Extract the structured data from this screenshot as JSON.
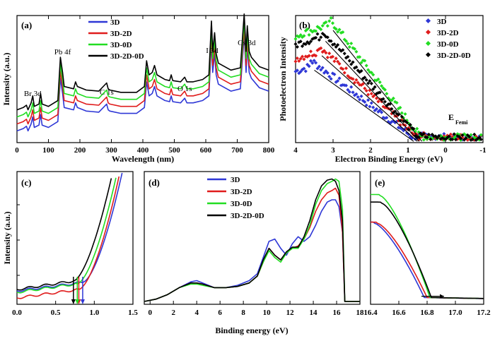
{
  "colors": {
    "3D": "#2e37d6",
    "3D-2D": "#e01c1c",
    "3D-0D": "#22dd22",
    "3D-2D-0D": "#000000"
  },
  "chart_data": [
    {
      "panel": "(a)",
      "type": "line",
      "xlabel": "Wavelength (nm)",
      "ylabel": "Intensity (a.u.)",
      "xlim": [
        0,
        800
      ],
      "xticks": [
        0,
        100,
        200,
        300,
        400,
        500,
        600,
        700,
        800
      ],
      "legend": "top-center",
      "series_names": [
        "3D",
        "3D-2D",
        "3D-0D",
        "3D-2D-0D"
      ],
      "offsets": [
        0.0,
        0.06,
        0.12,
        0.18
      ],
      "x": [
        0,
        20,
        30,
        35,
        45,
        50,
        55,
        70,
        75,
        80,
        100,
        130,
        138,
        145,
        150,
        180,
        186,
        192,
        220,
        260,
        285,
        290,
        295,
        330,
        380,
        405,
        412,
        420,
        430,
        437,
        445,
        470,
        485,
        490,
        495,
        520,
        533,
        540,
        560,
        590,
        610,
        618,
        622,
        628,
        633,
        640,
        680,
        710,
        722,
        728,
        732,
        738,
        745,
        770,
        800
      ],
      "values": [
        0.1,
        0.12,
        0.14,
        0.1,
        0.16,
        0.22,
        0.13,
        0.15,
        0.24,
        0.15,
        0.13,
        0.18,
        0.55,
        0.42,
        0.3,
        0.28,
        0.34,
        0.3,
        0.27,
        0.26,
        0.33,
        0.28,
        0.27,
        0.25,
        0.25,
        0.3,
        0.52,
        0.4,
        0.42,
        0.48,
        0.4,
        0.36,
        0.35,
        0.4,
        0.35,
        0.34,
        0.38,
        0.34,
        0.34,
        0.36,
        0.4,
        0.86,
        0.6,
        0.76,
        0.58,
        0.5,
        0.44,
        0.46,
        0.92,
        0.6,
        0.82,
        0.6,
        0.55,
        0.47,
        0.44
      ],
      "annotations": [
        {
          "text": "Br 3d",
          "x": 50
        },
        {
          "text": "Pb 4f",
          "x": 145
        },
        {
          "text": "C 1s",
          "x": 285
        },
        {
          "text": "O 1s",
          "x": 533
        },
        {
          "text": "I 3d",
          "x": 620
        },
        {
          "text": "Cs 3d",
          "x": 730
        }
      ]
    },
    {
      "panel": "(b)",
      "type": "scatter",
      "xlabel": "Electron Binding Energy (eV)",
      "ylabel": "Photoelectron Intensity",
      "xlim": [
        4,
        -1
      ],
      "xticks": [
        4,
        3,
        2,
        1,
        0,
        -1
      ],
      "legend": "top-right",
      "annotation": "E",
      "annotation_sub": "Femi",
      "series": [
        {
          "name": "3D",
          "peak_x": 3.6,
          "peak_y": 0.6,
          "cut_x": 0.9
        },
        {
          "name": "3D-2D",
          "peak_x": 3.4,
          "peak_y": 0.72,
          "cut_x": 0.8
        },
        {
          "name": "3D-0D",
          "peak_x": 3.1,
          "peak_y": 0.93,
          "cut_x": 0.68
        },
        {
          "name": "3D-2D-0D",
          "peak_x": 3.3,
          "peak_y": 0.84,
          "cut_x": 0.75
        }
      ]
    },
    {
      "panel": "(c)",
      "type": "line",
      "ylabel": "Intensity (a.u.)",
      "xlim": [
        0,
        1.5
      ],
      "xticks": [
        "0.0",
        "0.5",
        "1.0",
        "1.5"
      ],
      "series": [
        {
          "name": "3D",
          "onset": 0.85
        },
        {
          "name": "3D-2D",
          "onset": 0.8
        },
        {
          "name": "3D-0D",
          "onset": 0.78
        },
        {
          "name": "3D-2D-0D",
          "onset": 0.73
        }
      ]
    },
    {
      "panel": "(d)",
      "type": "line",
      "xlabel": "Binding energy (eV)",
      "xlim": [
        -0.5,
        18
      ],
      "xticks": [
        0,
        2,
        4,
        6,
        8,
        10,
        12,
        14,
        16,
        18
      ],
      "legend": "top-center",
      "x": [
        -0.5,
        0.5,
        1.5,
        2.5,
        3.5,
        4.0,
        4.5,
        5.5,
        6.5,
        7.5,
        8.5,
        9.2,
        9.7,
        10.2,
        10.7,
        11.2,
        11.7,
        12.2,
        12.7,
        13.2,
        13.7,
        14.2,
        14.7,
        15.2,
        15.6,
        15.9,
        16.2,
        16.5,
        16.7,
        18.0
      ],
      "series": [
        {
          "name": "3D",
          "values": [
            0.0,
            0.02,
            0.06,
            0.12,
            0.17,
            0.18,
            0.16,
            0.12,
            0.12,
            0.14,
            0.18,
            0.24,
            0.38,
            0.52,
            0.54,
            0.46,
            0.4,
            0.5,
            0.56,
            0.52,
            0.56,
            0.66,
            0.78,
            0.86,
            0.88,
            0.88,
            0.82,
            0.6,
            0.0,
            0.0
          ]
        },
        {
          "name": "3D-2D",
          "values": [
            0.0,
            0.02,
            0.06,
            0.12,
            0.16,
            0.16,
            0.15,
            0.12,
            0.12,
            0.13,
            0.16,
            0.22,
            0.34,
            0.46,
            0.4,
            0.36,
            0.42,
            0.46,
            0.48,
            0.54,
            0.64,
            0.78,
            0.88,
            0.94,
            0.96,
            0.98,
            0.92,
            0.6,
            0.0,
            0.0
          ]
        },
        {
          "name": "3D-0D",
          "values": [
            0.0,
            0.02,
            0.06,
            0.12,
            0.15,
            0.15,
            0.14,
            0.12,
            0.12,
            0.13,
            0.16,
            0.22,
            0.34,
            0.44,
            0.38,
            0.34,
            0.42,
            0.46,
            0.46,
            0.54,
            0.66,
            0.84,
            0.96,
            1.02,
            1.04,
            1.06,
            1.04,
            0.8,
            0.0,
            0.0
          ]
        },
        {
          "name": "3D-2D-0D",
          "values": [
            0.0,
            0.02,
            0.06,
            0.12,
            0.16,
            0.16,
            0.15,
            0.12,
            0.12,
            0.13,
            0.16,
            0.22,
            0.36,
            0.46,
            0.4,
            0.36,
            0.43,
            0.47,
            0.47,
            0.56,
            0.7,
            0.88,
            1.0,
            1.05,
            1.06,
            1.04,
            0.96,
            0.7,
            0.0,
            0.0
          ]
        }
      ]
    },
    {
      "panel": "(e)",
      "type": "line",
      "xlim": [
        16.4,
        17.2
      ],
      "xticks": [
        "16.4",
        "16.6",
        "16.8",
        "17.0",
        "17.2"
      ],
      "series": [
        {
          "name": "3D",
          "start": 0.62,
          "cutoff": 16.78
        },
        {
          "name": "3D-2D",
          "start": 0.62,
          "cutoff": 16.8
        },
        {
          "name": "3D-0D",
          "start": 0.84,
          "cutoff": 16.82
        },
        {
          "name": "3D-2D-0D",
          "start": 0.78,
          "cutoff": 16.83
        }
      ]
    }
  ]
}
